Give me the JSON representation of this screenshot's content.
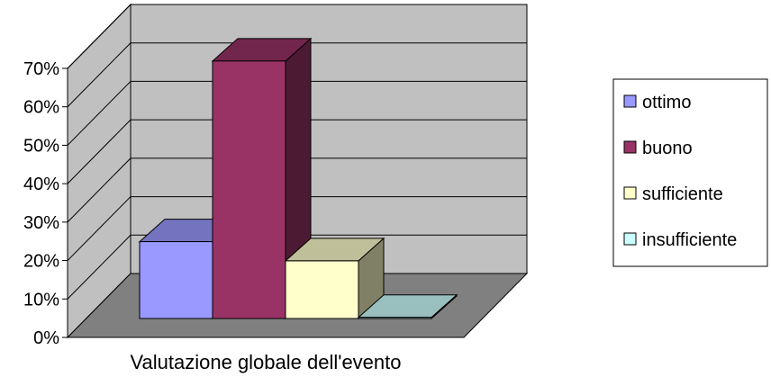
{
  "chart_data": {
    "type": "bar",
    "style": "3d-clustered-column",
    "categories": [
      "Valutazione globale dell'evento"
    ],
    "series": [
      {
        "name": "ottimo",
        "values": [
          20
        ],
        "color": "#9999ff"
      },
      {
        "name": "buono",
        "values": [
          67
        ],
        "color": "#993366"
      },
      {
        "name": "sufficiente",
        "values": [
          15
        ],
        "color": "#ffffcc"
      },
      {
        "name": "insufficiente",
        "values": [
          0.3
        ],
        "color": "#ccffff"
      }
    ],
    "title": "",
    "xlabel": "Valutazione globale dell'evento",
    "ylabel": "",
    "ylim": [
      0,
      70
    ],
    "yticks": [
      "0%",
      "10%",
      "20%",
      "30%",
      "40%",
      "50%",
      "60%",
      "70%"
    ],
    "grid": true,
    "legend": "right",
    "colors": {
      "wall": "#c0c0c0",
      "floor": "#808080",
      "gridline": "#000000"
    }
  }
}
